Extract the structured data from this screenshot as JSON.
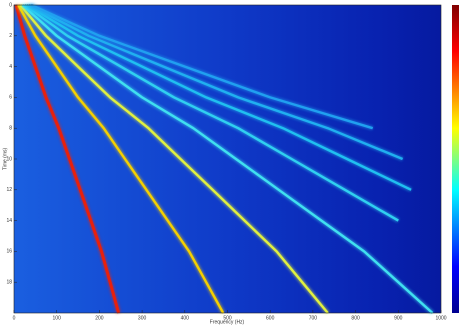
{
  "chart_data": {
    "type": "spectrogram",
    "xlabel": "Frequency (Hz)",
    "ylabel": "Time (ms)",
    "xlim": [
      0,
      1000
    ],
    "xticks": [
      0,
      100,
      200,
      300,
      400,
      500,
      600,
      700,
      800,
      900,
      1000
    ],
    "ylim": [
      0,
      20
    ],
    "yticks": [
      0,
      2,
      4,
      6,
      8,
      10,
      12,
      14,
      16,
      18
    ],
    "y_inverted": true,
    "y": [
      0,
      2,
      4,
      6,
      8,
      10,
      12,
      14,
      16,
      18,
      20
    ],
    "series": [
      {
        "color": "#e8200c",
        "values": [
          5,
          25,
          50,
          75,
          105,
          130,
          155,
          180,
          205,
          225,
          245
        ]
      },
      {
        "color": "#f5d000",
        "values": [
          10,
          50,
          100,
          150,
          210,
          260,
          310,
          360,
          410,
          450,
          490
        ]
      },
      {
        "color": "#e0f040",
        "values": [
          15,
          75,
          150,
          225,
          315,
          390,
          465,
          540,
          615,
          675,
          735
        ]
      },
      {
        "color": "#40e0f0",
        "values": [
          20,
          100,
          200,
          300,
          420,
          520,
          620,
          720,
          820,
          900,
          980
        ]
      },
      {
        "color": "#30d0f0",
        "values": [
          25,
          125,
          250,
          375,
          525,
          650,
          775,
          900,
          null,
          null,
          null
        ]
      },
      {
        "color": "#20c0f0",
        "values": [
          30,
          150,
          300,
          450,
          630,
          780,
          930,
          null,
          null,
          null,
          null
        ]
      },
      {
        "color": "#20b0f0",
        "values": [
          35,
          175,
          350,
          525,
          735,
          910,
          null,
          null,
          null,
          null,
          null
        ]
      },
      {
        "color": "#20a0f0",
        "values": [
          40,
          200,
          400,
          600,
          840,
          null,
          null,
          null,
          null,
          null,
          null
        ]
      }
    ]
  }
}
